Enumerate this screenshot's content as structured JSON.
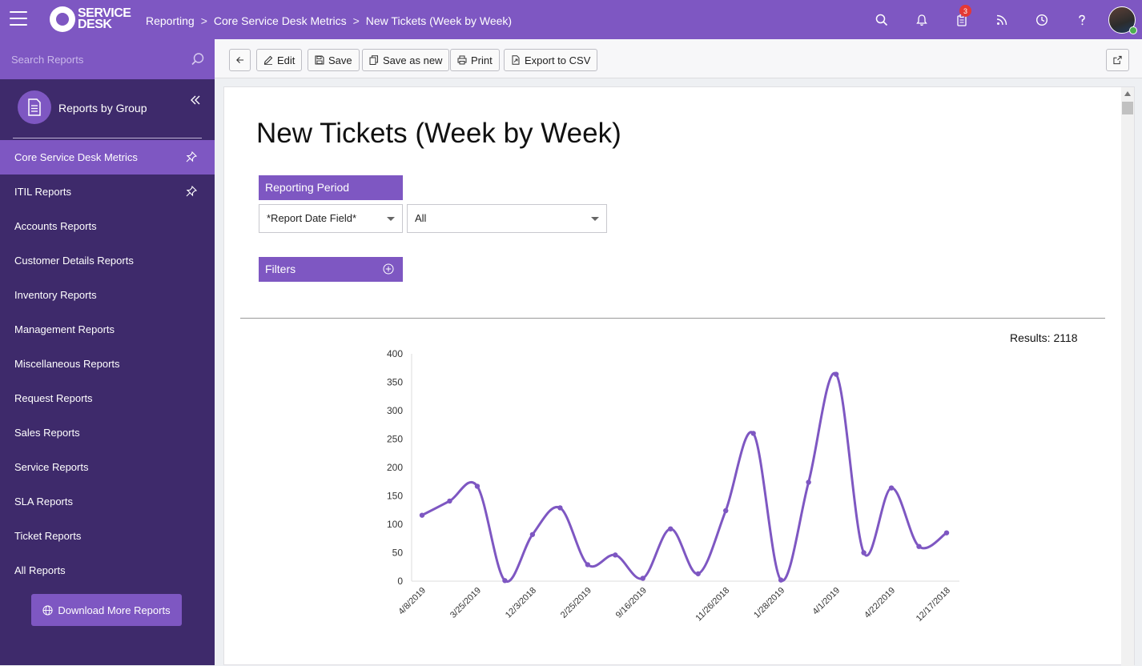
{
  "header": {
    "logo_line1": "SERVICE",
    "logo_line2": "DESK",
    "breadcrumb": [
      "Reporting",
      "Core Service Desk Metrics",
      "New Tickets (Week by Week)"
    ],
    "breadcrumb_sep": ">",
    "notification_count": "3",
    "icons": [
      "search-icon",
      "bell-icon",
      "clipboard-icon",
      "rss-icon",
      "clock-icon",
      "help-icon"
    ]
  },
  "sidebar": {
    "search_placeholder": "Search Reports",
    "group_title": "Reports by Group",
    "items": [
      {
        "label": "Core Service Desk Metrics",
        "pinned": true,
        "active": true
      },
      {
        "label": "ITIL Reports",
        "pinned": true,
        "active": false
      },
      {
        "label": "Accounts Reports"
      },
      {
        "label": "Customer Details Reports"
      },
      {
        "label": "Inventory Reports"
      },
      {
        "label": "Management Reports"
      },
      {
        "label": "Miscellaneous Reports"
      },
      {
        "label": "Request Reports"
      },
      {
        "label": "Sales Reports"
      },
      {
        "label": "Service Reports"
      },
      {
        "label": "SLA Reports"
      },
      {
        "label": "Ticket Reports"
      },
      {
        "label": "All Reports"
      }
    ],
    "download_label": "Download More Reports"
  },
  "toolbar": {
    "edit": "Edit",
    "save": "Save",
    "save_as_new": "Save as new",
    "print": "Print",
    "export": "Export to CSV"
  },
  "report": {
    "title": "New Tickets (Week by Week)",
    "period_label": "Reporting Period",
    "date_field": "*Report Date Field*",
    "range": "All",
    "filters_label": "Filters",
    "results": "Results: 2118"
  },
  "colors": {
    "primary": "#7e57c2",
    "sidebar": "#3e2a6b",
    "line": "#7e57c2"
  },
  "chart_data": {
    "type": "line",
    "title": "",
    "xlabel": "",
    "ylabel": "",
    "ylim": [
      0,
      400
    ],
    "yticks": [
      0,
      50,
      100,
      150,
      200,
      250,
      300,
      350,
      400
    ],
    "x_tick_labels": [
      "4/8/2019",
      "3/25/2019",
      "12/3/2018",
      "2/25/2019",
      "9/16/2019",
      "11/26/2018",
      "1/28/2019",
      "4/1/2019",
      "4/22/2019",
      "12/17/2018"
    ],
    "values": [
      116,
      141,
      167,
      1,
      82,
      129,
      29,
      46,
      5,
      92,
      13,
      124,
      260,
      2,
      174,
      364,
      50,
      164,
      61,
      85
    ],
    "grid": false,
    "legend": "none"
  }
}
